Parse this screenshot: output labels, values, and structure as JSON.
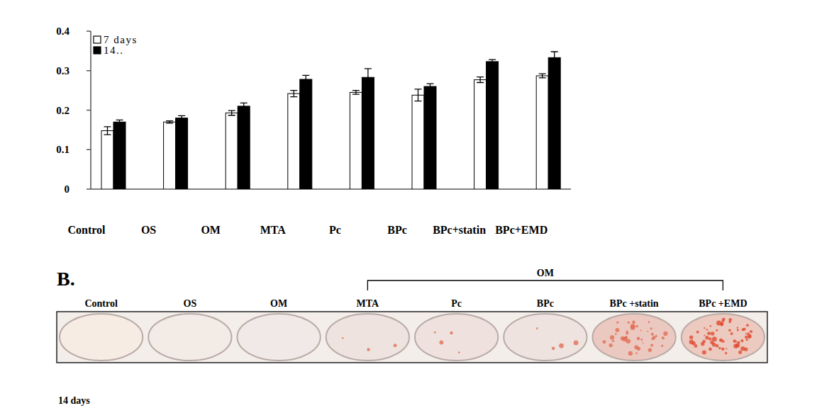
{
  "chart_data": {
    "type": "bar",
    "categories": [
      "Control",
      "OS",
      "OM",
      "MTA",
      "Pc",
      "BPc",
      "BPc+statin",
      "BPc+EMD"
    ],
    "series": [
      {
        "name": "7 days",
        "color": "#ffffff",
        "values": [
          0.148,
          0.17,
          0.193,
          0.242,
          0.245,
          0.238,
          0.277,
          0.287
        ],
        "errors": [
          0.01,
          0.003,
          0.006,
          0.008,
          0.005,
          0.015,
          0.007,
          0.005
        ]
      },
      {
        "name": "14..",
        "color": "#000000",
        "values": [
          0.17,
          0.18,
          0.21,
          0.278,
          0.283,
          0.26,
          0.323,
          0.333
        ],
        "errors": [
          0.005,
          0.006,
          0.008,
          0.01,
          0.022,
          0.007,
          0.005,
          0.015
        ]
      }
    ],
    "ylim": [
      0,
      0.4
    ],
    "yticks": [
      0,
      0.1,
      0.2,
      0.3,
      0.4
    ],
    "grid": false,
    "legend": "upper left"
  },
  "panel_b": {
    "title": "B.",
    "group_label": "OM",
    "labels": [
      "Control",
      "OS",
      "OM",
      "MTA",
      "Pc",
      "BPc",
      "BPc +statin",
      "BPc +EMD"
    ],
    "caption": "14 days"
  }
}
